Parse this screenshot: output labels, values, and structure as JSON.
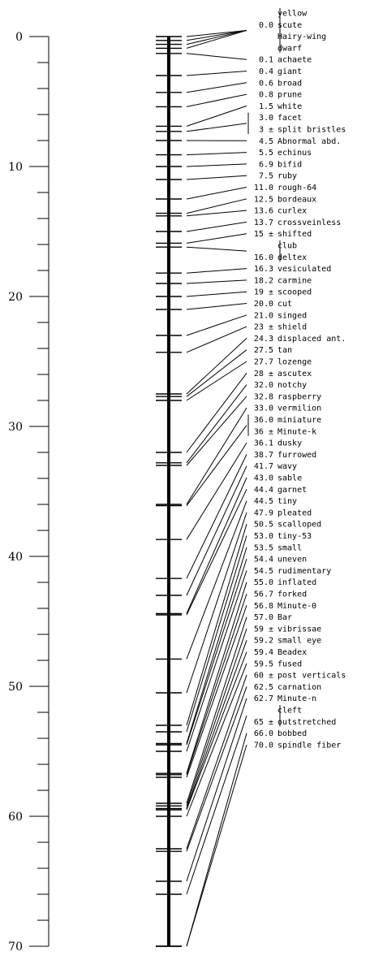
{
  "scale": {
    "min": 0,
    "max": 70,
    "major_labels": [
      "0",
      "10",
      "20",
      "30",
      "40",
      "50",
      "60",
      "70"
    ]
  },
  "loci": [
    {
      "pos": 0.0,
      "ticks": [
        0,
        0.3,
        0.6,
        0.9
      ],
      "rows": [
        {
          "pos_text": "",
          "name": "yellow"
        },
        {
          "pos_text": "0.0",
          "name": "scute"
        },
        {
          "pos_text": "",
          "name": "Hairy-wing"
        },
        {
          "pos_text": "",
          "name": "dwarf"
        }
      ]
    },
    {
      "pos": 0.1,
      "ticks": [
        1.3
      ],
      "rows": [
        {
          "pos_text": "0.1",
          "name": "achaete"
        }
      ]
    },
    {
      "pos": 0.4,
      "ticks": [
        3.0
      ],
      "rows": [
        {
          "pos_text": "0.4",
          "name": "giant"
        }
      ]
    },
    {
      "pos": 0.6,
      "ticks": [
        4.3
      ],
      "rows": [
        {
          "pos_text": "0.6",
          "name": "broad"
        }
      ]
    },
    {
      "pos": 0.8,
      "ticks": [
        5.4
      ],
      "rows": [
        {
          "pos_text": "0.8",
          "name": "prune"
        }
      ]
    },
    {
      "pos": 1.5,
      "ticks": [
        6.9
      ],
      "rows": [
        {
          "pos_text": "1.5",
          "name": "white"
        }
      ]
    },
    {
      "pos": 3.0,
      "ticks": [
        7.3
      ],
      "rows": [
        {
          "pos_text": "3.0",
          "name": "facet"
        },
        {
          "pos_text": "3 ±",
          "name": "split bristles"
        }
      ]
    },
    {
      "pos": 4.5,
      "ticks": [
        8.0
      ],
      "rows": [
        {
          "pos_text": "4.5",
          "name": "Abnormal abd."
        }
      ]
    },
    {
      "pos": 5.5,
      "ticks": [
        9.1
      ],
      "rows": [
        {
          "pos_text": "5.5",
          "name": "echinus"
        }
      ]
    },
    {
      "pos": 6.9,
      "ticks": [
        10.0
      ],
      "rows": [
        {
          "pos_text": "6.9",
          "name": "bifid"
        }
      ]
    },
    {
      "pos": 7.5,
      "ticks": [
        11.0
      ],
      "rows": [
        {
          "pos_text": "7.5",
          "name": "ruby"
        }
      ]
    },
    {
      "pos": 11.0,
      "ticks": [
        12.5
      ],
      "rows": [
        {
          "pos_text": "11.0",
          "name": "rough-64"
        }
      ]
    },
    {
      "pos": 12.5,
      "ticks": [
        13.6
      ],
      "rows": [
        {
          "pos_text": "12.5",
          "name": "bordeaux"
        }
      ]
    },
    {
      "pos": 13.6,
      "ticks": [
        13.8
      ],
      "rows": [
        {
          "pos_text": "13.6",
          "name": "curlex"
        }
      ]
    },
    {
      "pos": 13.7,
      "ticks": [
        15.0
      ],
      "rows": [
        {
          "pos_text": "13.7",
          "name": "crossveinless"
        }
      ]
    },
    {
      "pos": 15.0,
      "ticks": [
        15.9
      ],
      "rows": [
        {
          "pos_text": "15 ±",
          "name": "shifted"
        }
      ]
    },
    {
      "pos": 16.0,
      "ticks": [
        16.2
      ],
      "rows": [
        {
          "pos_text": "",
          "name": "club"
        },
        {
          "pos_text": "16.0",
          "name": "deltex"
        }
      ]
    },
    {
      "pos": 16.3,
      "ticks": [
        18.2
      ],
      "rows": [
        {
          "pos_text": "16.3",
          "name": "vesiculated"
        }
      ]
    },
    {
      "pos": 18.2,
      "ticks": [
        19.0
      ],
      "rows": [
        {
          "pos_text": "18.2",
          "name": "carmine"
        }
      ]
    },
    {
      "pos": 19.0,
      "ticks": [
        20.0
      ],
      "rows": [
        {
          "pos_text": "19 ±",
          "name": "scooped"
        }
      ]
    },
    {
      "pos": 20.0,
      "ticks": [
        21.0
      ],
      "rows": [
        {
          "pos_text": "20.0",
          "name": "cut"
        }
      ]
    },
    {
      "pos": 21.0,
      "ticks": [
        23.0
      ],
      "rows": [
        {
          "pos_text": "21.0",
          "name": "singed"
        }
      ]
    },
    {
      "pos": 23.0,
      "ticks": [
        24.3
      ],
      "rows": [
        {
          "pos_text": "23 ±",
          "name": "shield"
        }
      ]
    },
    {
      "pos": 24.3,
      "ticks": [
        27.5
      ],
      "rows": [
        {
          "pos_text": "24.3",
          "name": "displaced ant."
        }
      ]
    },
    {
      "pos": 27.5,
      "ticks": [
        27.7
      ],
      "rows": [
        {
          "pos_text": "27.5",
          "name": "tan"
        }
      ]
    },
    {
      "pos": 27.7,
      "ticks": [
        28.0
      ],
      "rows": [
        {
          "pos_text": "27.7",
          "name": "lozenge"
        }
      ]
    },
    {
      "pos": 28.0,
      "ticks": [
        32.0
      ],
      "rows": [
        {
          "pos_text": "28 ±",
          "name": "ascutex"
        }
      ]
    },
    {
      "pos": 32.0,
      "ticks": [
        32.8
      ],
      "rows": [
        {
          "pos_text": "32.0",
          "name": "notchy"
        }
      ]
    },
    {
      "pos": 32.8,
      "ticks": [
        33.0
      ],
      "rows": [
        {
          "pos_text": "32.8",
          "name": "raspberry"
        }
      ]
    },
    {
      "pos": 33.0,
      "ticks": [
        36.0
      ],
      "rows": [
        {
          "pos_text": "33.0",
          "name": "vermilion"
        }
      ]
    },
    {
      "pos": 36.0,
      "ticks": [
        36.1
      ],
      "rows": [
        {
          "pos_text": "36.0",
          "name": "miniature"
        },
        {
          "pos_text": "36 ±",
          "name": "Minute-k"
        }
      ]
    },
    {
      "pos": 36.1,
      "ticks": [
        38.7
      ],
      "rows": [
        {
          "pos_text": "36.1",
          "name": "dusky"
        }
      ]
    },
    {
      "pos": 38.7,
      "ticks": [
        41.7
      ],
      "rows": [
        {
          "pos_text": "38.7",
          "name": "furrowed"
        }
      ]
    },
    {
      "pos": 41.7,
      "ticks": [
        43.0
      ],
      "rows": [
        {
          "pos_text": "41.7",
          "name": "wavy"
        }
      ]
    },
    {
      "pos": 43.0,
      "ticks": [
        44.4
      ],
      "rows": [
        {
          "pos_text": "43.0",
          "name": "sable"
        }
      ]
    },
    {
      "pos": 44.4,
      "ticks": [
        44.5
      ],
      "rows": [
        {
          "pos_text": "44.4",
          "name": "garnet"
        }
      ]
    },
    {
      "pos": 44.5,
      "ticks": [
        47.9
      ],
      "rows": [
        {
          "pos_text": "44.5",
          "name": "tiny"
        }
      ]
    },
    {
      "pos": 47.9,
      "ticks": [
        50.5
      ],
      "rows": [
        {
          "pos_text": "47.9",
          "name": "pleated"
        }
      ]
    },
    {
      "pos": 50.5,
      "ticks": [
        53.0
      ],
      "rows": [
        {
          "pos_text": "50.5",
          "name": "scalloped"
        }
      ]
    },
    {
      "pos": 53.0,
      "ticks": [
        53.5
      ],
      "rows": [
        {
          "pos_text": "53.0",
          "name": "tiny-53"
        }
      ]
    },
    {
      "pos": 53.5,
      "ticks": [
        54.4
      ],
      "rows": [
        {
          "pos_text": "53.5",
          "name": "small"
        }
      ]
    },
    {
      "pos": 54.4,
      "ticks": [
        54.5
      ],
      "rows": [
        {
          "pos_text": "54.4",
          "name": "uneven"
        }
      ]
    },
    {
      "pos": 54.5,
      "ticks": [
        55.0
      ],
      "rows": [
        {
          "pos_text": "54.5",
          "name": "rudimentary"
        }
      ]
    },
    {
      "pos": 55.0,
      "ticks": [
        56.7
      ],
      "rows": [
        {
          "pos_text": "55.0",
          "name": "inflated"
        }
      ]
    },
    {
      "pos": 56.7,
      "ticks": [
        56.8
      ],
      "rows": [
        {
          "pos_text": "56.7",
          "name": "forked"
        }
      ]
    },
    {
      "pos": 56.8,
      "ticks": [
        57.0
      ],
      "rows": [
        {
          "pos_text": "56.8",
          "name": "Minute-0"
        }
      ]
    },
    {
      "pos": 57.0,
      "ticks": [
        59.0
      ],
      "rows": [
        {
          "pos_text": "57.0",
          "name": "Bar"
        }
      ]
    },
    {
      "pos": 59.0,
      "ticks": [
        59.2
      ],
      "rows": [
        {
          "pos_text": "59 ±",
          "name": "vibrissae"
        }
      ]
    },
    {
      "pos": 59.2,
      "ticks": [
        59.4
      ],
      "rows": [
        {
          "pos_text": "59.2",
          "name": "small eye"
        }
      ]
    },
    {
      "pos": 59.4,
      "ticks": [
        59.5
      ],
      "rows": [
        {
          "pos_text": "59.4",
          "name": "Beadex"
        }
      ]
    },
    {
      "pos": 59.5,
      "ticks": [
        60.0
      ],
      "rows": [
        {
          "pos_text": "59.5",
          "name": "fused"
        }
      ]
    },
    {
      "pos": 60.0,
      "ticks": [
        62.5
      ],
      "rows": [
        {
          "pos_text": "60 ±",
          "name": "post verticals"
        }
      ]
    },
    {
      "pos": 62.5,
      "ticks": [
        62.7
      ],
      "rows": [
        {
          "pos_text": "62.5",
          "name": "carnation"
        }
      ]
    },
    {
      "pos": 62.7,
      "ticks": [
        65.0
      ],
      "rows": [
        {
          "pos_text": "62.7",
          "name": "Minute-n"
        }
      ]
    },
    {
      "pos": 65.0,
      "ticks": [
        66.0
      ],
      "rows": [
        {
          "pos_text": "",
          "name": "cleft"
        },
        {
          "pos_text": "65 ±",
          "name": "outstretched"
        }
      ]
    },
    {
      "pos": 66.0,
      "ticks": [
        70.0
      ],
      "rows": [
        {
          "pos_text": "66.0",
          "name": "bobbed"
        }
      ]
    },
    {
      "pos": 70.0,
      "ticks": [
        70.0
      ],
      "rows": [
        {
          "pos_text": "70.0",
          "name": "spindle fiber"
        }
      ]
    }
  ]
}
